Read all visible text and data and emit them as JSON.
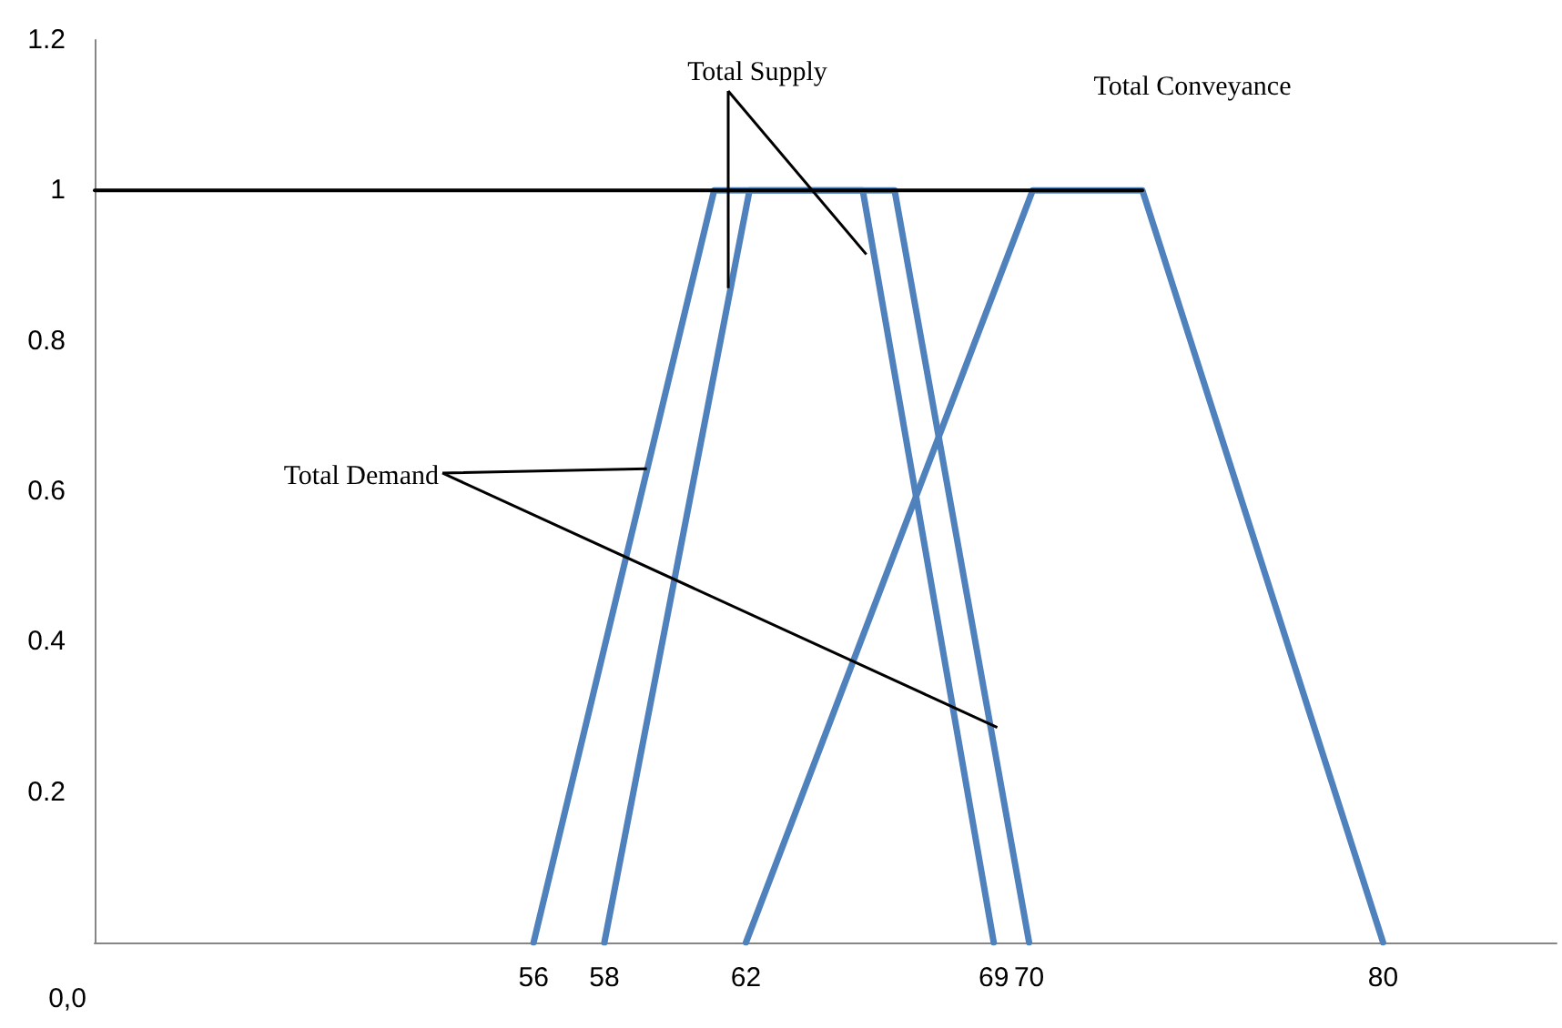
{
  "chart_data": {
    "type": "line",
    "xlim": [
      43.6,
      84.9
    ],
    "xticks": [
      56,
      58,
      62,
      69,
      70,
      80
    ],
    "ylim": [
      0,
      1.2
    ],
    "yticks": [
      0.2,
      0.4,
      0.6,
      0.8,
      1,
      1.2
    ],
    "grid": false,
    "marker": "none",
    "line_style": "solid",
    "series": [
      {
        "color": "#000000",
        "x": [
          43.6,
          73.2
        ],
        "values": [
          1,
          1
        ]
      },
      {
        "color": "#4f81bd",
        "x": [
          56,
          61.1,
          65.3,
          69
        ],
        "values": [
          0,
          1,
          1,
          0
        ]
      },
      {
        "color": "#4f81bd",
        "x": [
          58,
          62.1,
          66.2,
          70
        ],
        "values": [
          0,
          1,
          1,
          0
        ]
      },
      {
        "color": "#4f81bd",
        "x": [
          62,
          70.1,
          73.2,
          80
        ],
        "values": [
          0,
          1,
          1,
          0
        ]
      }
    ],
    "annotations": [
      "0,0",
      {
        "text": "Total Supply",
        "x": 61.5,
        "y": 0.87
      },
      "Total Conveyance",
      {
        "text": "Total Demand",
        "x": 59.2,
        "y": 0.63
      }
    ]
  }
}
